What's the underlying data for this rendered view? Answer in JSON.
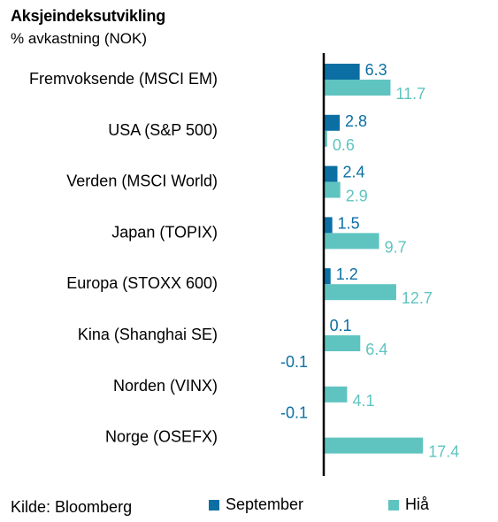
{
  "title": "Aksjeindeksutvikling",
  "subtitle": "% avkastning (NOK)",
  "source": "Kilde: Bloomberg",
  "colors": {
    "september": "#0b6fa4",
    "hia": "#5fc4c0",
    "axis": "#000000"
  },
  "chart_data": {
    "type": "bar",
    "orientation": "horizontal",
    "title": "Aksjeindeksutvikling",
    "subtitle": "% avkastning (NOK)",
    "categories": [
      "Fremvoksende (MSCI EM)",
      "USA (S&P 500)",
      "Verden (MSCI World)",
      "Japan (TOPIX)",
      "Europa (STOXX 600)",
      "Kina (Shanghai SE)",
      "Norden (VINX)",
      "Norge (OSEFX)"
    ],
    "series": [
      {
        "name": "September",
        "values": [
          6.3,
          2.8,
          2.4,
          1.5,
          1.2,
          0.1,
          -0.1,
          -0.1
        ],
        "labels": [
          "6.3",
          "2.8",
          "2.4",
          "1.5",
          "1.2",
          "0.1",
          "-0.1",
          "-0.1"
        ]
      },
      {
        "name": "Hiå",
        "values": [
          11.7,
          0.6,
          2.9,
          9.7,
          12.7,
          6.4,
          4.1,
          17.4
        ],
        "labels": [
          "11.7",
          "0.6",
          "2.9",
          "9.7",
          "12.7",
          "6.4",
          "4.1",
          "17.4"
        ]
      }
    ],
    "xlim": [
      -0.1,
      17.4
    ],
    "grid": false,
    "legend": "bottom"
  }
}
